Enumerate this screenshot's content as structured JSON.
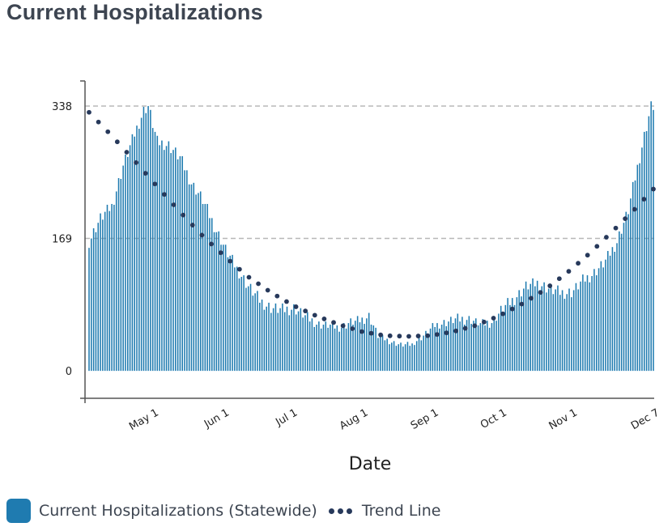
{
  "title": "Current Hospitalizations",
  "colors": {
    "bar": "#1f7bb0",
    "trend": "#27395b",
    "grid": "#b8b8b8",
    "axis": "#555555"
  },
  "legend": {
    "bars_label": "Current Hospitalizations (Statewide)",
    "trend_label": "Trend Line"
  },
  "chart_data": {
    "type": "bar",
    "title": "Current Hospitalizations",
    "xlabel": "Date",
    "ylabel": "",
    "x_range": [
      "2020-04-03",
      "2020-12-07"
    ],
    "ylim": [
      -35,
      370
    ],
    "yticks": [
      0,
      169,
      338
    ],
    "xticks": [
      {
        "date": "2020-05-01",
        "label": "May 1"
      },
      {
        "date": "2020-06-01",
        "label": "Jun 1"
      },
      {
        "date": "2020-07-01",
        "label": "Jul 1"
      },
      {
        "date": "2020-08-01",
        "label": "Aug 1"
      },
      {
        "date": "2020-09-01",
        "label": "Sep 1"
      },
      {
        "date": "2020-10-01",
        "label": "Oct 1"
      },
      {
        "date": "2020-11-01",
        "label": "Nov 1"
      },
      {
        "date": "2020-12-07",
        "label": "Dec 7"
      }
    ],
    "grid": "horizontal dashed at 169 and 338",
    "legend_position": "bottom-left",
    "series": [
      {
        "name": "Current Hospitalizations (Statewide)",
        "type": "bar",
        "keypoints": [
          [
            "2020-04-03",
            165
          ],
          [
            "2020-04-08",
            195
          ],
          [
            "2020-04-13",
            210
          ],
          [
            "2020-04-18",
            262
          ],
          [
            "2020-04-23",
            302
          ],
          [
            "2020-04-27",
            332
          ],
          [
            "2020-04-29",
            338
          ],
          [
            "2020-05-03",
            292
          ],
          [
            "2020-05-08",
            288
          ],
          [
            "2020-05-13",
            272
          ],
          [
            "2020-05-18",
            240
          ],
          [
            "2020-05-23",
            218
          ],
          [
            "2020-05-28",
            185
          ],
          [
            "2020-06-02",
            155
          ],
          [
            "2020-06-07",
            130
          ],
          [
            "2020-06-12",
            108
          ],
          [
            "2020-06-17",
            90
          ],
          [
            "2020-06-22",
            80
          ],
          [
            "2020-06-27",
            78
          ],
          [
            "2020-07-02",
            80
          ],
          [
            "2020-07-07",
            70
          ],
          [
            "2020-07-12",
            60
          ],
          [
            "2020-07-17",
            58
          ],
          [
            "2020-07-22",
            55
          ],
          [
            "2020-07-27",
            62
          ],
          [
            "2020-08-01",
            65
          ],
          [
            "2020-08-04",
            70
          ],
          [
            "2020-08-08",
            45
          ],
          [
            "2020-08-13",
            38
          ],
          [
            "2020-08-18",
            33
          ],
          [
            "2020-08-23",
            34
          ],
          [
            "2020-08-28",
            45
          ],
          [
            "2020-09-02",
            58
          ],
          [
            "2020-09-07",
            62
          ],
          [
            "2020-09-12",
            66
          ],
          [
            "2020-09-17",
            66
          ],
          [
            "2020-09-22",
            60
          ],
          [
            "2020-09-27",
            62
          ],
          [
            "2020-10-02",
            80
          ],
          [
            "2020-10-07",
            92
          ],
          [
            "2020-10-12",
            108
          ],
          [
            "2020-10-17",
            112
          ],
          [
            "2020-10-22",
            105
          ],
          [
            "2020-10-27",
            100
          ],
          [
            "2020-11-01",
            100
          ],
          [
            "2020-11-06",
            115
          ],
          [
            "2020-11-11",
            125
          ],
          [
            "2020-11-16",
            140
          ],
          [
            "2020-11-21",
            165
          ],
          [
            "2020-11-26",
            205
          ],
          [
            "2020-11-30",
            260
          ],
          [
            "2020-12-03",
            300
          ],
          [
            "2020-12-06",
            338
          ],
          [
            "2020-12-07",
            338
          ]
        ]
      },
      {
        "name": "Trend Line",
        "type": "dotted-line",
        "keypoints": [
          [
            "2020-04-03",
            330
          ],
          [
            "2020-04-13",
            300
          ],
          [
            "2020-04-23",
            268
          ],
          [
            "2020-05-03",
            235
          ],
          [
            "2020-05-13",
            203
          ],
          [
            "2020-05-23",
            172
          ],
          [
            "2020-06-02",
            145
          ],
          [
            "2020-06-12",
            120
          ],
          [
            "2020-06-22",
            100
          ],
          [
            "2020-07-02",
            83
          ],
          [
            "2020-07-12",
            70
          ],
          [
            "2020-07-22",
            59
          ],
          [
            "2020-08-01",
            50
          ],
          [
            "2020-08-11",
            45
          ],
          [
            "2020-08-21",
            44
          ],
          [
            "2020-08-31",
            45
          ],
          [
            "2020-09-10",
            50
          ],
          [
            "2020-09-20",
            58
          ],
          [
            "2020-09-30",
            70
          ],
          [
            "2020-10-10",
            85
          ],
          [
            "2020-10-20",
            103
          ],
          [
            "2020-10-30",
            125
          ],
          [
            "2020-11-09",
            150
          ],
          [
            "2020-11-19",
            178
          ],
          [
            "2020-11-29",
            207
          ],
          [
            "2020-12-07",
            232
          ]
        ]
      }
    ]
  }
}
